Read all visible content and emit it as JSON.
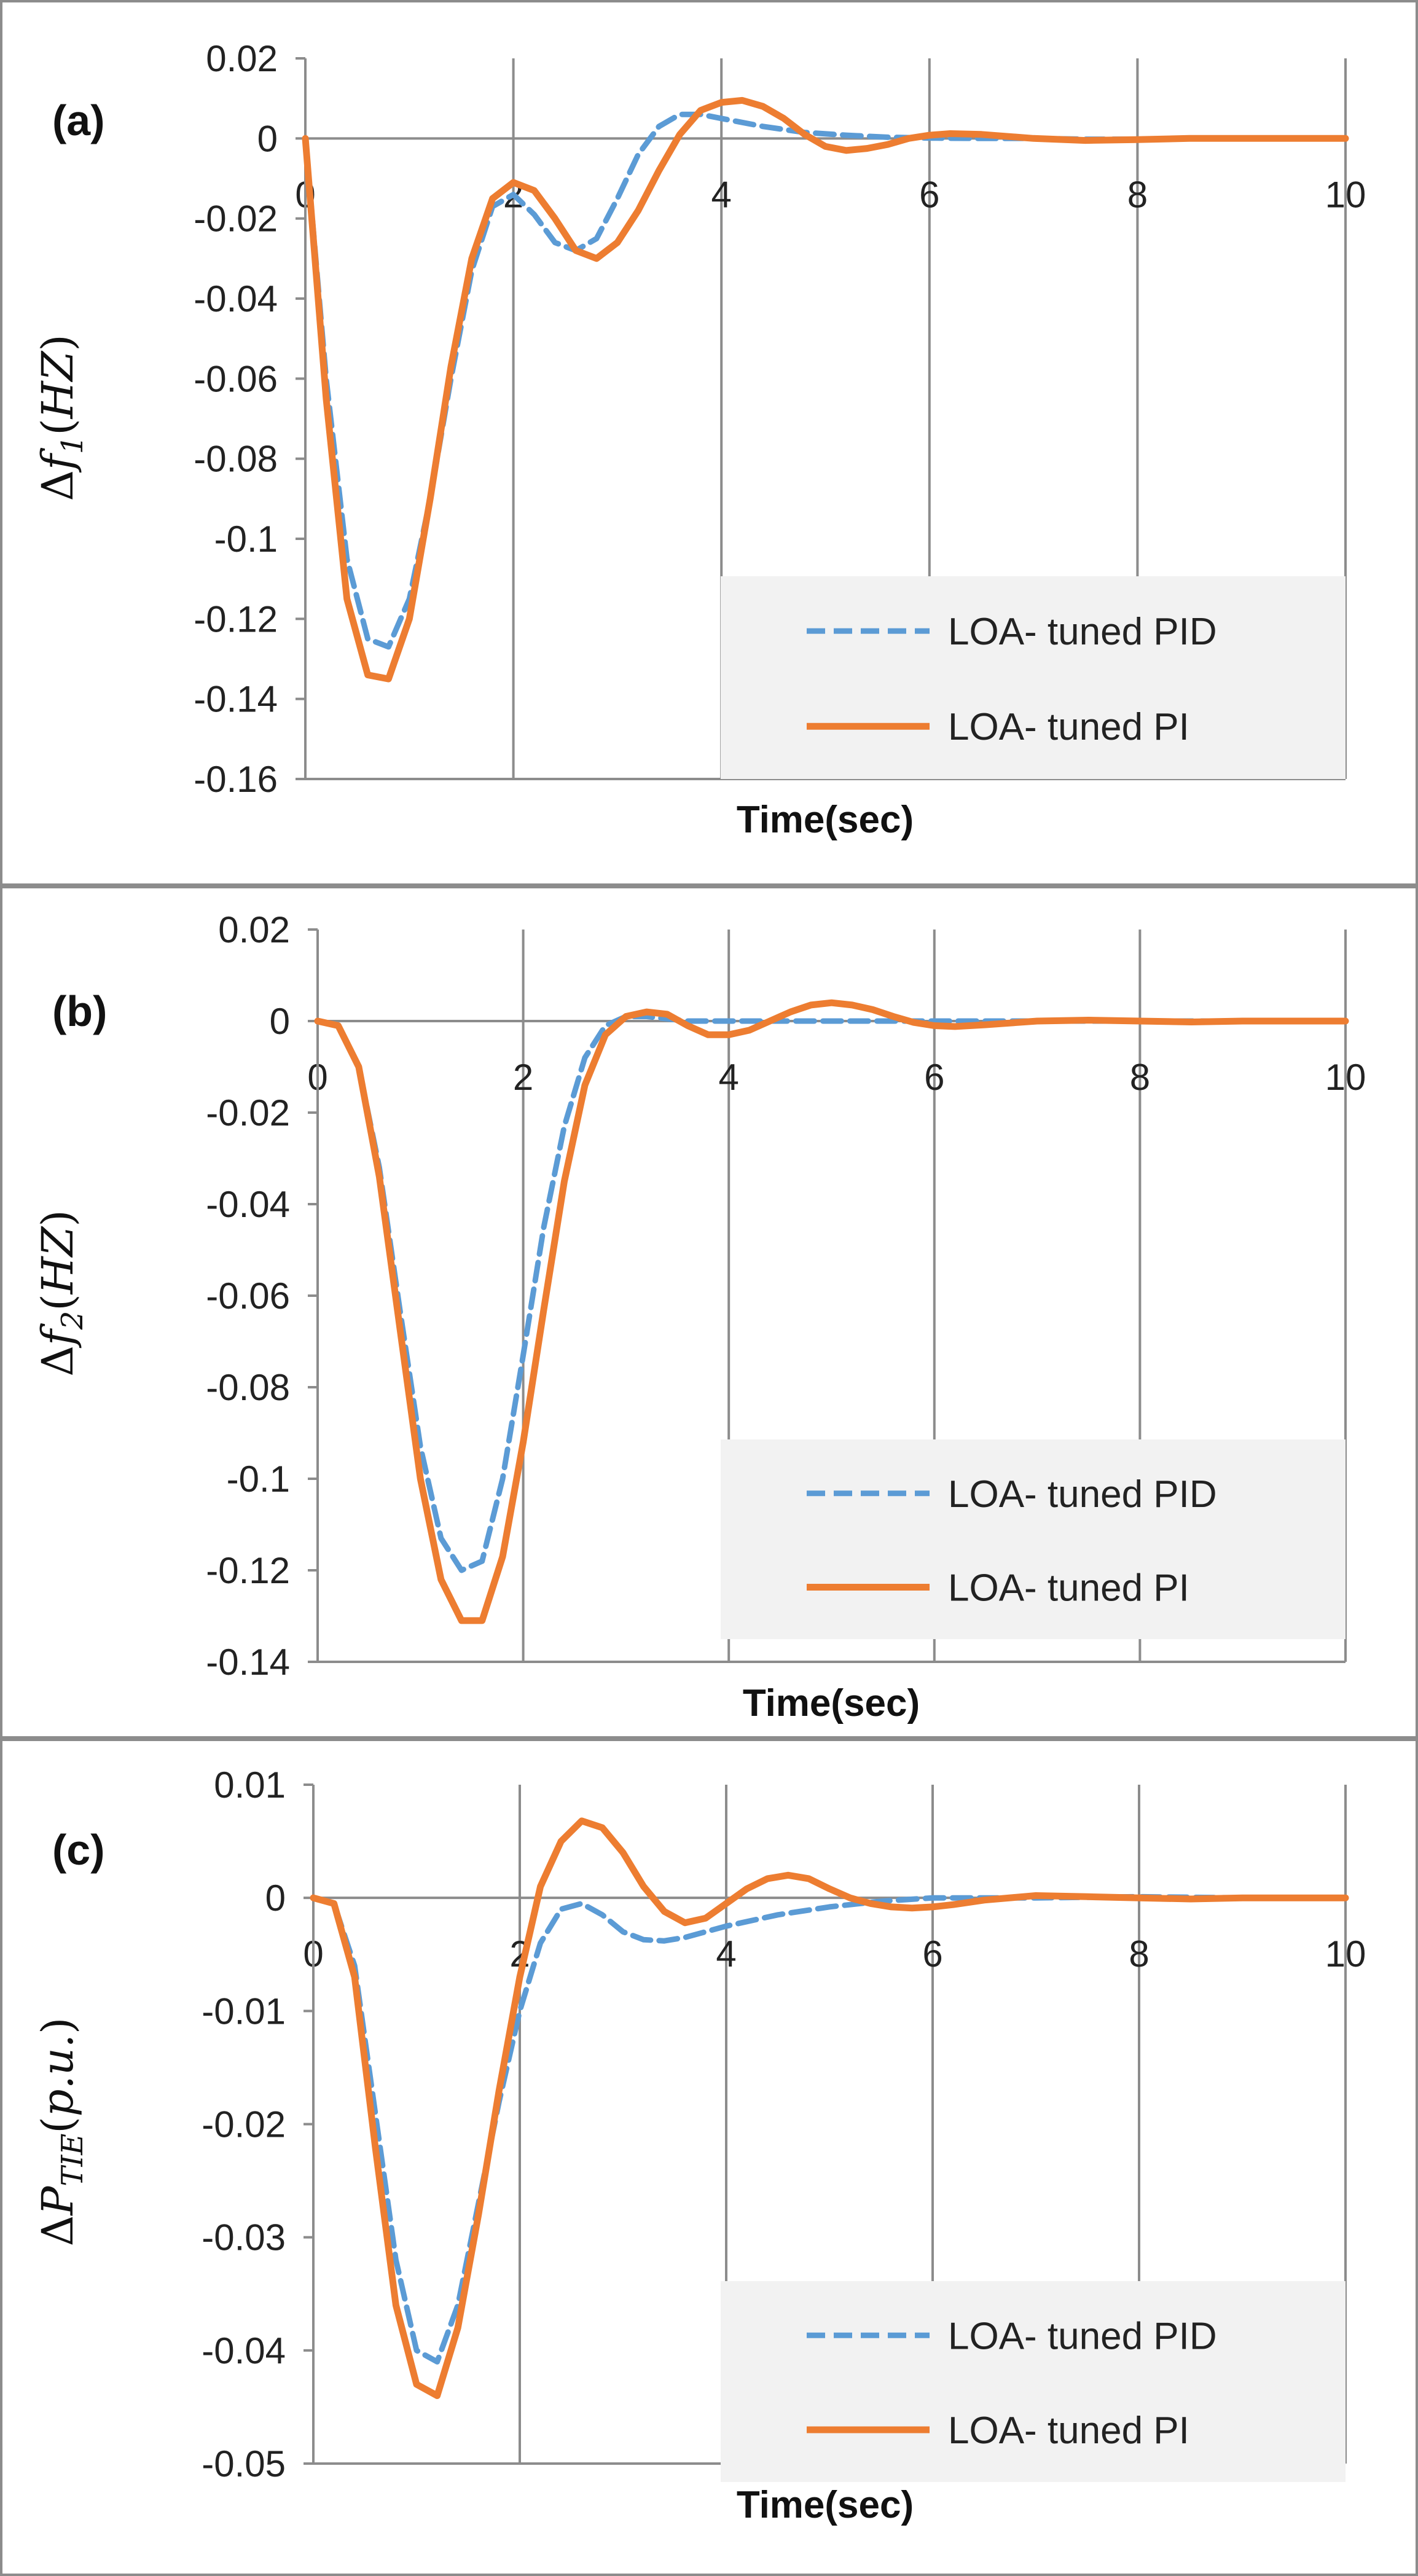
{
  "chart_data": [
    {
      "type": "line",
      "panel_label": "(a)",
      "ylabel": {
        "symbol": "Δ",
        "var": "f",
        "sub": "1",
        "unit": "HZ"
      },
      "xlabel": "Time(sec)",
      "xlim": [
        0,
        10
      ],
      "ylim": [
        -0.16,
        0.02
      ],
      "xticks": [
        "0",
        "2",
        "4",
        "6",
        "8",
        "10"
      ],
      "yticks": [
        "0.02",
        "0",
        "-0.02",
        "-0.04",
        "-0.06",
        "-0.08",
        "-0.1",
        "-0.12",
        "-0.14",
        "-0.16"
      ],
      "grid": "vertical",
      "legend_position": "bottom-right",
      "series": [
        {
          "name": "LOA- tuned PID",
          "color": "#5B9BD5",
          "style": "dashed",
          "x": [
            0,
            0.2,
            0.4,
            0.6,
            0.8,
            1.0,
            1.2,
            1.4,
            1.6,
            1.8,
            2.0,
            2.2,
            2.4,
            2.6,
            2.8,
            3.0,
            3.2,
            3.4,
            3.6,
            3.8,
            4.0,
            4.4,
            4.8,
            5.2,
            5.6,
            6.0,
            6.5,
            7.0,
            7.5,
            8.0,
            8.5,
            9.0,
            9.5,
            10.0
          ],
          "y": [
            0,
            -0.06,
            -0.105,
            -0.125,
            -0.127,
            -0.115,
            -0.09,
            -0.06,
            -0.033,
            -0.017,
            -0.014,
            -0.019,
            -0.026,
            -0.028,
            -0.025,
            -0.015,
            -0.004,
            0.003,
            0.006,
            0.006,
            0.005,
            0.003,
            0.0015,
            0.0008,
            0.0003,
            0.0001,
            0,
            0,
            -0.0002,
            -0.0002,
            0,
            0,
            0,
            0
          ]
        },
        {
          "name": "LOA- tuned PI",
          "color": "#ED7D31",
          "style": "solid",
          "x": [
            0,
            0.2,
            0.4,
            0.6,
            0.8,
            1.0,
            1.2,
            1.4,
            1.6,
            1.8,
            2.0,
            2.2,
            2.4,
            2.6,
            2.8,
            3.0,
            3.2,
            3.4,
            3.6,
            3.8,
            4.0,
            4.2,
            4.4,
            4.6,
            4.8,
            5.0,
            5.2,
            5.4,
            5.6,
            5.8,
            6.0,
            6.2,
            6.5,
            7.0,
            7.5,
            8.0,
            8.5,
            9.0,
            9.5,
            10.0
          ],
          "y": [
            0,
            -0.065,
            -0.115,
            -0.134,
            -0.135,
            -0.12,
            -0.09,
            -0.057,
            -0.03,
            -0.015,
            -0.011,
            -0.013,
            -0.02,
            -0.028,
            -0.03,
            -0.026,
            -0.018,
            -0.008,
            0.001,
            0.007,
            0.009,
            0.0095,
            0.008,
            0.005,
            0.001,
            -0.002,
            -0.003,
            -0.0025,
            -0.0015,
            0,
            0.0008,
            0.0012,
            0.001,
            0,
            -0.0005,
            -0.0003,
            0,
            0,
            0,
            0
          ]
        }
      ]
    },
    {
      "type": "line",
      "panel_label": "(b)",
      "ylabel": {
        "symbol": "Δ",
        "var": "f",
        "sub": "2",
        "unit": "HZ"
      },
      "xlabel": "Time(sec)",
      "xlim": [
        0,
        10
      ],
      "ylim": [
        -0.14,
        0.02
      ],
      "xticks": [
        "0",
        "2",
        "4",
        "6",
        "8",
        "10"
      ],
      "yticks": [
        "0.02",
        "0",
        "-0.02",
        "-0.04",
        "-0.06",
        "-0.08",
        "-0.1",
        "-0.12",
        "-0.14"
      ],
      "grid": "vertical",
      "legend_position": "bottom-right",
      "series": [
        {
          "name": "LOA- tuned PID",
          "color": "#5B9BD5",
          "style": "dashed",
          "x": [
            0,
            0.2,
            0.4,
            0.6,
            0.8,
            1.0,
            1.2,
            1.4,
            1.6,
            1.8,
            2.0,
            2.2,
            2.4,
            2.6,
            2.8,
            3.0,
            3.2,
            3.4,
            3.6,
            3.8,
            4.0,
            4.5,
            5.0,
            5.5,
            6.0,
            7.0,
            8.0,
            9.0,
            10.0
          ],
          "y": [
            0,
            -0.001,
            -0.01,
            -0.032,
            -0.063,
            -0.093,
            -0.113,
            -0.12,
            -0.118,
            -0.1,
            -0.073,
            -0.045,
            -0.023,
            -0.008,
            -0.001,
            0.001,
            0.001,
            0.0005,
            0,
            0,
            0,
            0,
            0,
            0,
            0,
            0,
            0,
            0,
            0
          ]
        },
        {
          "name": "LOA- tuned PI",
          "color": "#ED7D31",
          "style": "solid",
          "x": [
            0,
            0.2,
            0.4,
            0.6,
            0.8,
            1.0,
            1.2,
            1.4,
            1.6,
            1.8,
            2.0,
            2.2,
            2.4,
            2.6,
            2.8,
            3.0,
            3.2,
            3.4,
            3.6,
            3.8,
            4.0,
            4.2,
            4.4,
            4.6,
            4.8,
            5.0,
            5.2,
            5.4,
            5.6,
            5.8,
            6.0,
            6.2,
            6.5,
            7.0,
            7.5,
            8.0,
            8.5,
            9.0,
            9.5,
            10.0
          ],
          "y": [
            0,
            -0.001,
            -0.01,
            -0.034,
            -0.067,
            -0.1,
            -0.122,
            -0.131,
            -0.131,
            -0.117,
            -0.092,
            -0.063,
            -0.035,
            -0.014,
            -0.003,
            0.001,
            0.002,
            0.0015,
            -0.001,
            -0.003,
            -0.003,
            -0.002,
            0,
            0.002,
            0.0035,
            0.004,
            0.0035,
            0.0025,
            0.001,
            -0.0003,
            -0.001,
            -0.0012,
            -0.0008,
            0,
            0.0002,
            0,
            -0.0002,
            0,
            0,
            0
          ]
        }
      ]
    },
    {
      "type": "line",
      "panel_label": "(c)",
      "ylabel": {
        "symbol": "Δ",
        "var": "P",
        "sub": "TIE",
        "unit": "p.u."
      },
      "xlabel": "Time(sec)",
      "xlim": [
        0,
        10
      ],
      "ylim": [
        -0.05,
        0.01
      ],
      "xticks": [
        "0",
        "2",
        "4",
        "6",
        "8",
        "10"
      ],
      "yticks": [
        "0.01",
        "0",
        "-0.01",
        "-0.02",
        "-0.03",
        "-0.04",
        "-0.05"
      ],
      "grid": "vertical",
      "legend_position": "bottom-right",
      "series": [
        {
          "name": "LOA- tuned PID",
          "color": "#5B9BD5",
          "style": "dashed",
          "x": [
            0,
            0.2,
            0.4,
            0.6,
            0.8,
            1.0,
            1.2,
            1.4,
            1.6,
            1.8,
            2.0,
            2.2,
            2.4,
            2.6,
            2.8,
            3.0,
            3.2,
            3.4,
            3.6,
            3.8,
            4.0,
            4.5,
            5.0,
            5.5,
            6.0,
            6.5,
            7.0,
            8.0,
            9.0,
            10.0
          ],
          "y": [
            0,
            -0.0005,
            -0.006,
            -0.019,
            -0.032,
            -0.04,
            -0.041,
            -0.036,
            -0.027,
            -0.018,
            -0.01,
            -0.004,
            -0.001,
            -0.0005,
            -0.0015,
            -0.003,
            -0.0037,
            -0.0038,
            -0.0035,
            -0.003,
            -0.0025,
            -0.0015,
            -0.0008,
            -0.0003,
            0,
            0,
            0,
            0.0001,
            0,
            0
          ]
        },
        {
          "name": "LOA- tuned PI",
          "color": "#ED7D31",
          "style": "solid",
          "x": [
            0,
            0.2,
            0.4,
            0.6,
            0.8,
            1.0,
            1.2,
            1.4,
            1.6,
            1.8,
            2.0,
            2.2,
            2.4,
            2.6,
            2.8,
            3.0,
            3.2,
            3.4,
            3.6,
            3.8,
            4.0,
            4.2,
            4.4,
            4.6,
            4.8,
            5.0,
            5.2,
            5.4,
            5.6,
            5.8,
            6.0,
            6.2,
            6.5,
            7.0,
            7.5,
            8.0,
            8.5,
            9.0,
            9.5,
            10.0
          ],
          "y": [
            0,
            -0.0005,
            -0.007,
            -0.022,
            -0.036,
            -0.043,
            -0.044,
            -0.038,
            -0.028,
            -0.017,
            -0.007,
            0.001,
            0.005,
            0.0068,
            0.0062,
            0.004,
            0.001,
            -0.0012,
            -0.0022,
            -0.0018,
            -0.0005,
            0.0008,
            0.0017,
            0.002,
            0.0017,
            0.0008,
            0,
            -0.0005,
            -0.0008,
            -0.0009,
            -0.0008,
            -0.0006,
            -0.0002,
            0.0002,
            0.0001,
            0,
            -0.0001,
            0,
            0,
            0
          ]
        }
      ]
    }
  ]
}
